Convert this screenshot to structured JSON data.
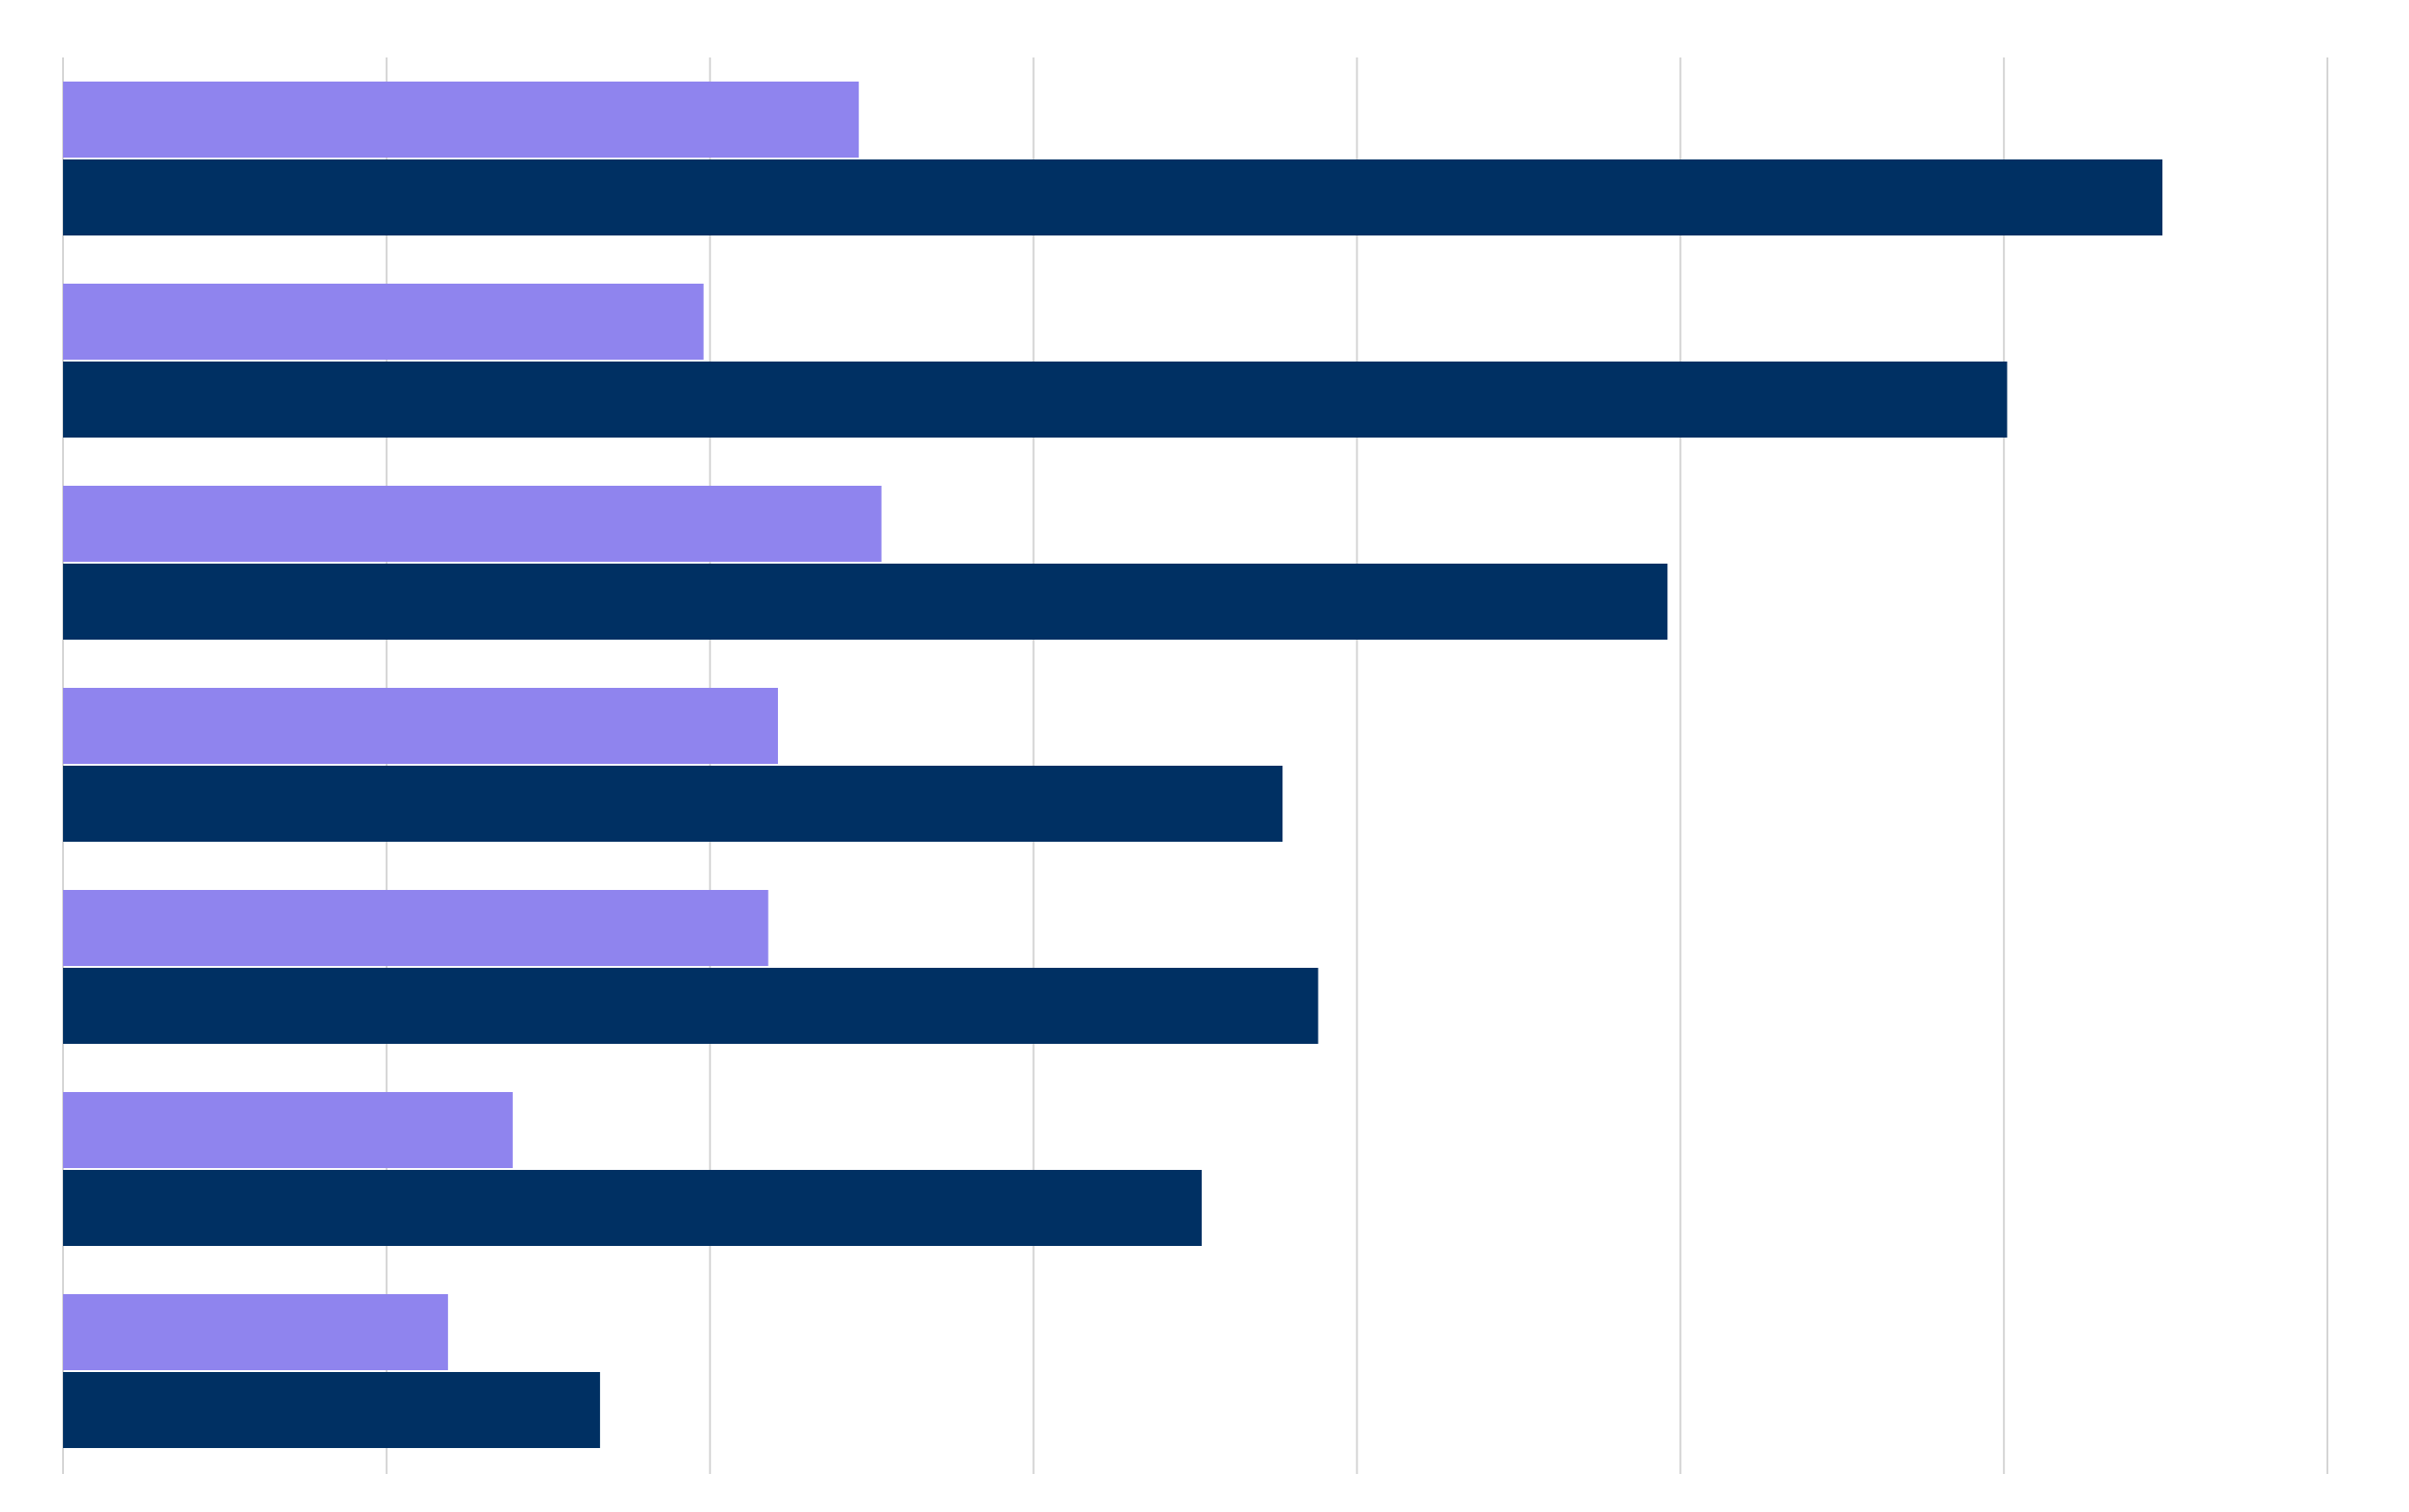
{
  "chart_data": {
    "type": "bar",
    "orientation": "horizontal",
    "categories": [
      "",
      "",
      "",
      "",
      "",
      "",
      ""
    ],
    "series": [
      {
        "color": "#8f84ee",
        "values": [
          24.6,
          19.8,
          25.3,
          22.1,
          21.8,
          13.9,
          11.9
        ]
      },
      {
        "color": "#003063",
        "values": [
          64.9,
          60.1,
          49.6,
          37.7,
          38.8,
          35.2,
          16.6
        ]
      }
    ],
    "xlim": [
      0,
      70
    ],
    "x_gridlines": [
      0,
      10,
      20,
      30,
      40,
      50,
      60,
      70
    ],
    "grid": true,
    "legend": "none",
    "title": "",
    "xlabel": "",
    "ylabel": ""
  }
}
